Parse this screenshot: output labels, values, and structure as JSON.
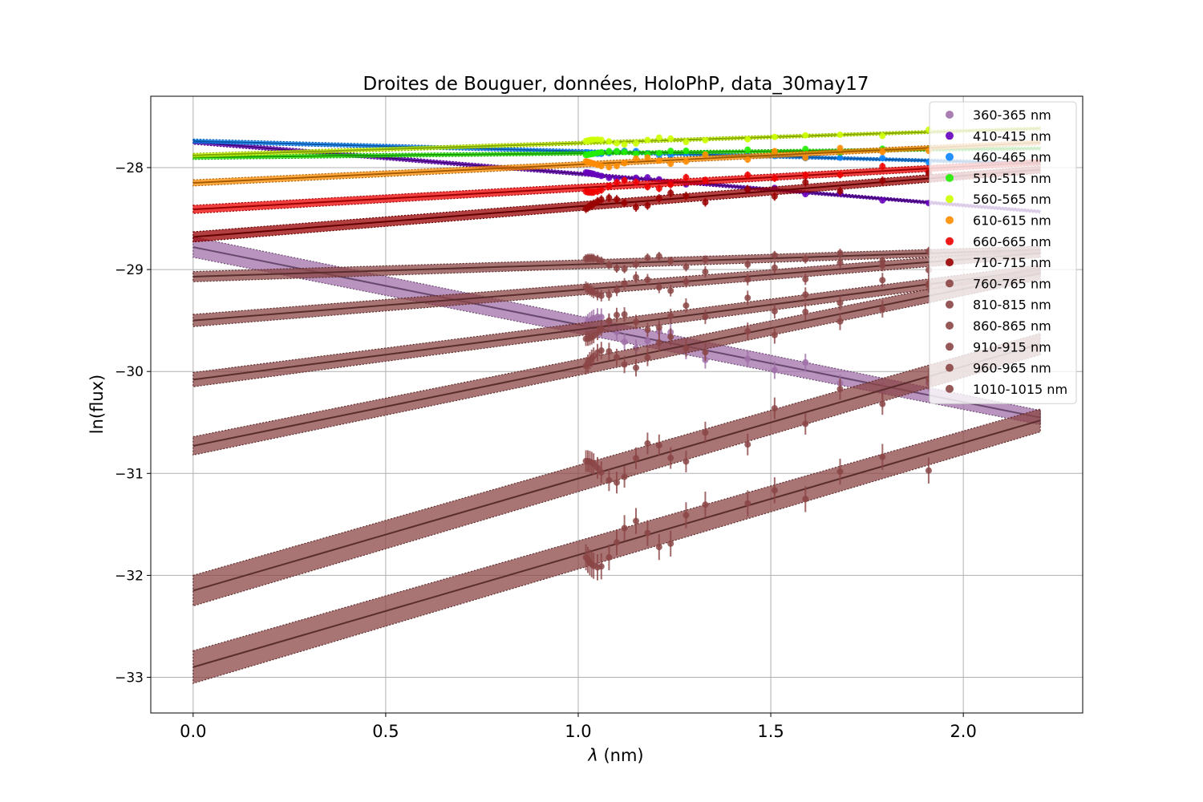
{
  "chart_data": {
    "type": "scatter",
    "title": "Droites de Bouguer, données, HoloPhP, data_30may17",
    "xlabel_symbol": "λ",
    "xlabel_unit": " (nm)",
    "ylabel": "ln(flux)",
    "xlim": [
      -0.11,
      2.31
    ],
    "ylim": [
      -33.35,
      -27.3
    ],
    "xticks": [
      0.0,
      0.5,
      1.0,
      1.5,
      2.0
    ],
    "xtick_labels": [
      "0.0",
      "0.5",
      "1.0",
      "1.5",
      "2.0"
    ],
    "yticks": [
      -33,
      -32,
      -31,
      -30,
      -29,
      -28
    ],
    "ytick_labels": [
      "−33",
      "−32",
      "−31",
      "−30",
      "−29",
      "−28"
    ],
    "grid": true,
    "legend_position": "top-right",
    "airmass": [
      1.02,
      1.025,
      1.03,
      1.035,
      1.04,
      1.05,
      1.06,
      1.08,
      1.1,
      1.12,
      1.15,
      1.18,
      1.21,
      1.24,
      1.28,
      1.33,
      1.44,
      1.51,
      1.59,
      1.68,
      1.79,
      1.91
    ],
    "fit_x": [
      0.0,
      2.2
    ],
    "series": [
      {
        "name": "360-365 nm",
        "color": "#a070a8",
        "intercept": -28.78,
        "slope": -0.76,
        "band": 0.1,
        "scatter": 0.12
      },
      {
        "name": "410-415 nm",
        "color": "#6600bb",
        "intercept": -27.75,
        "slope": -0.31,
        "band": 0.02,
        "scatter": 0.02
      },
      {
        "name": "460-465 nm",
        "color": "#0a84ff",
        "intercept": -27.74,
        "slope": -0.1,
        "band": 0.02,
        "scatter": 0.02
      },
      {
        "name": "510-515 nm",
        "color": "#22ee00",
        "intercept": -27.9,
        "slope": 0.04,
        "band": 0.02,
        "scatter": 0.02
      },
      {
        "name": "560-565 nm",
        "color": "#ccff00",
        "intercept": -27.88,
        "slope": 0.12,
        "band": 0.02,
        "scatter": 0.03
      },
      {
        "name": "610-615 nm",
        "color": "#ff8c00",
        "intercept": -28.15,
        "slope": 0.18,
        "band": 0.03,
        "scatter": 0.04
      },
      {
        "name": "660-665 nm",
        "color": "#ee0000",
        "intercept": -28.41,
        "slope": 0.21,
        "band": 0.04,
        "scatter": 0.05
      },
      {
        "name": "710-715 nm",
        "color": "#990000",
        "intercept": -28.68,
        "slope": 0.3,
        "band": 0.05,
        "scatter": 0.06
      },
      {
        "name": "760-765 nm",
        "color": "#8b4545",
        "intercept": -29.07,
        "slope": 0.12,
        "band": 0.05,
        "scatter": 0.06
      },
      {
        "name": "810-815 nm",
        "color": "#8b4545",
        "intercept": -29.5,
        "slope": 0.3,
        "band": 0.06,
        "scatter": 0.08
      },
      {
        "name": "860-865 nm",
        "color": "#8b4545",
        "intercept": -30.08,
        "slope": 0.49,
        "band": 0.07,
        "scatter": 0.1
      },
      {
        "name": "910-915 nm",
        "color": "#8b4545",
        "intercept": -30.73,
        "slope": 0.77,
        "band": 0.09,
        "scatter": 0.12
      },
      {
        "name": "960-965 nm",
        "color": "#8b4545",
        "intercept": -32.15,
        "slope": 1.1,
        "band": 0.15,
        "scatter": 0.15
      },
      {
        "name": "1010-1015 nm",
        "color": "#8b4545",
        "intercept": -32.9,
        "slope": 1.1,
        "band": 0.16,
        "scatter": 0.18
      }
    ]
  }
}
